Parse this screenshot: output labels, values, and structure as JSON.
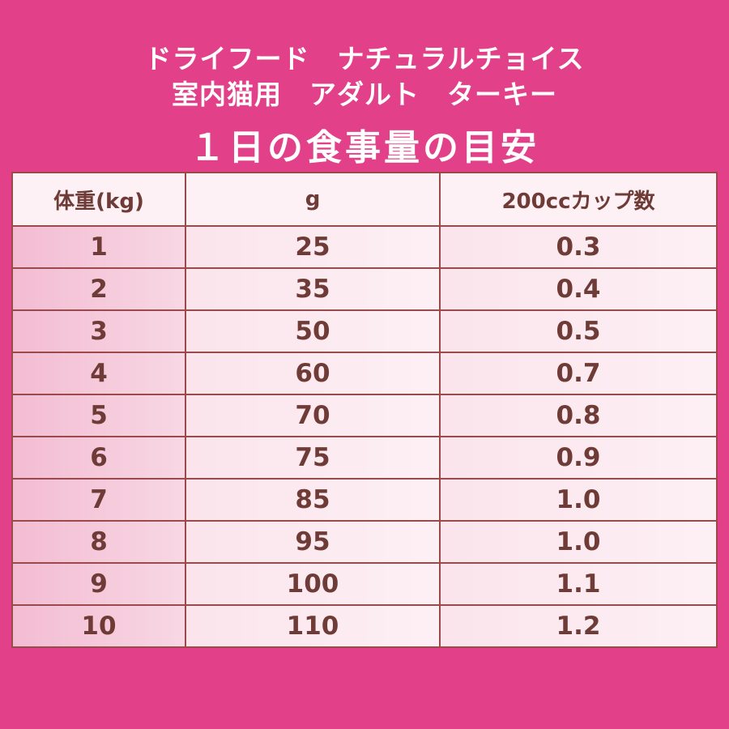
{
  "header": {
    "lines": [
      "ドライフード　ナチュラルチョイス",
      "室内猫用　アダルト　ターキー"
    ],
    "title": "１日の食事量の目安"
  },
  "table": {
    "columns": [
      "体重(kg)",
      "g",
      "200ccカップ数"
    ],
    "rows": [
      [
        "1",
        "25",
        "0.3"
      ],
      [
        "2",
        "35",
        "0.4"
      ],
      [
        "3",
        "50",
        "0.5"
      ],
      [
        "4",
        "60",
        "0.7"
      ],
      [
        "5",
        "70",
        "0.8"
      ],
      [
        "6",
        "75",
        "0.9"
      ],
      [
        "7",
        "85",
        "1.0"
      ],
      [
        "8",
        "95",
        "1.0"
      ],
      [
        "9",
        "100",
        "1.1"
      ],
      [
        "10",
        "110",
        "1.2"
      ]
    ]
  }
}
